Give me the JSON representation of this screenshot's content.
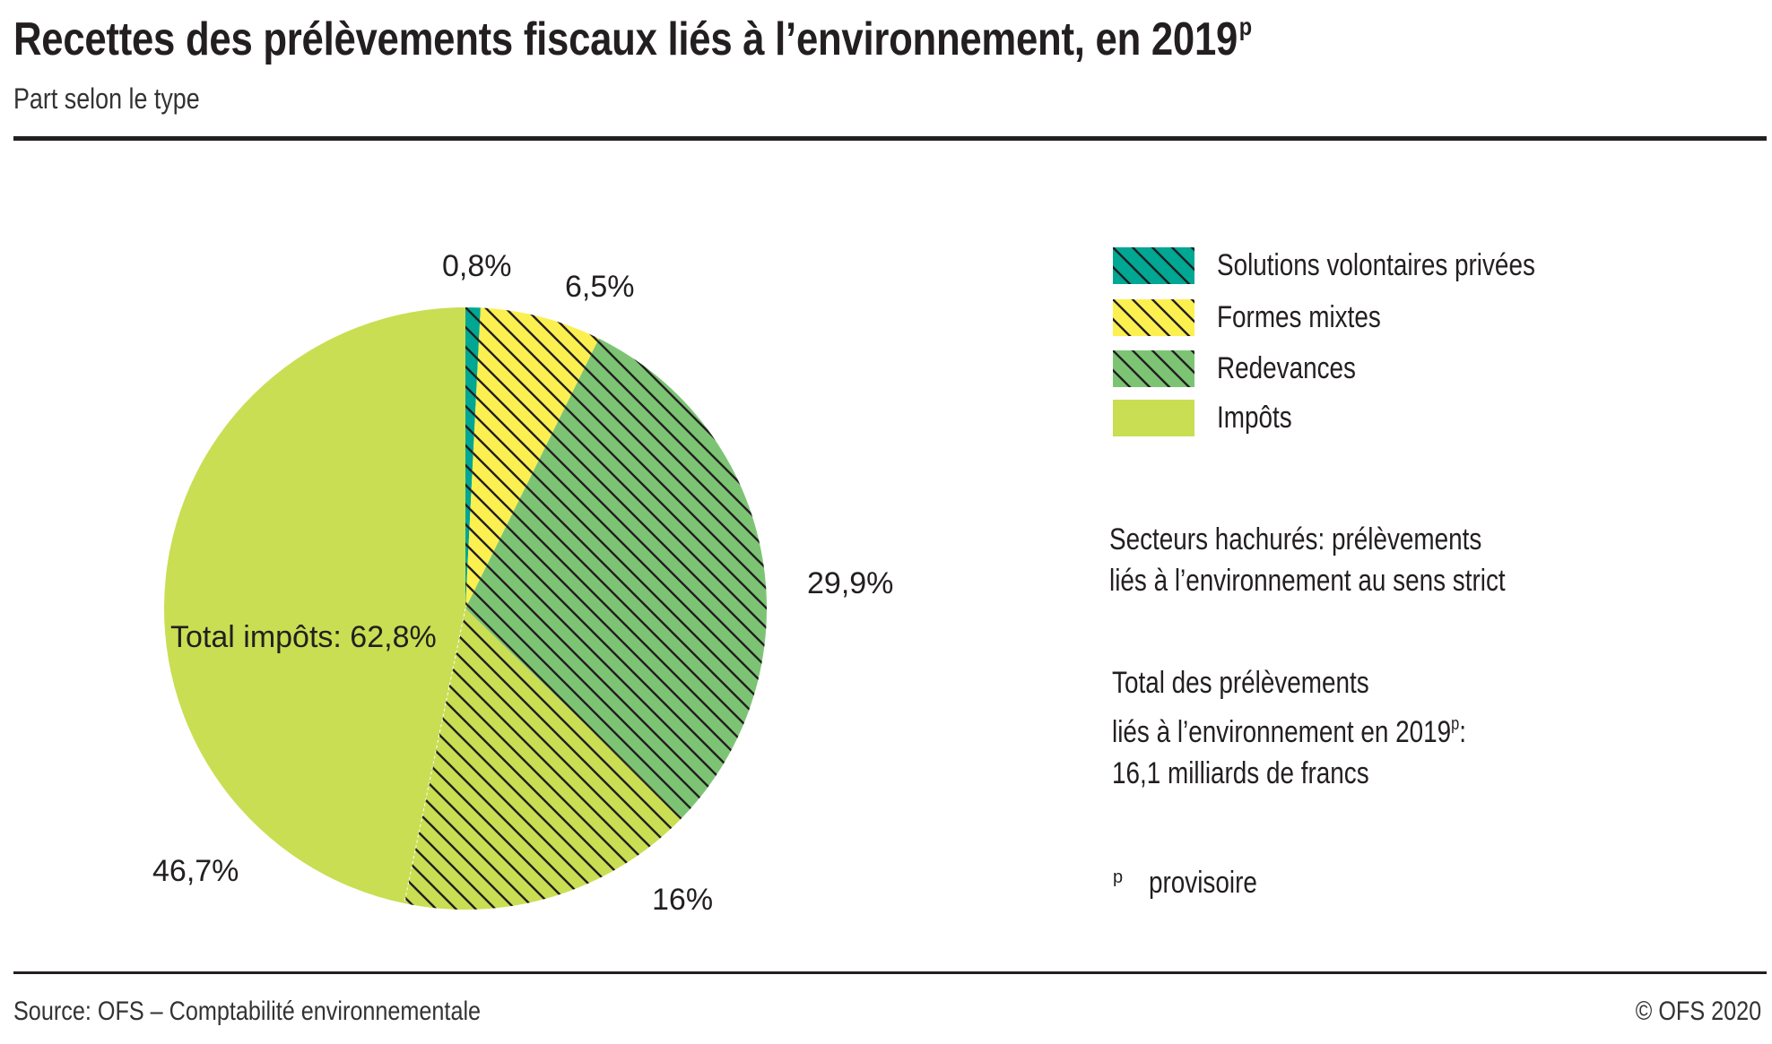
{
  "header": {
    "title": "Recettes des prélèvements fiscaux liés à l’environnement, en 2019",
    "title_superscript": "p",
    "subtitle": "Part selon le type"
  },
  "chart_data": {
    "type": "pie",
    "title": "Recettes des prélèvements fiscaux liés à l’environnement, en 2019p",
    "subtitle": "Part selon le type",
    "unit": "%",
    "start": "top",
    "direction": "clockwise",
    "slices": [
      {
        "name": "Solutions volontaires privées",
        "value": 0.8,
        "label": "0,8%",
        "color": "#00A793",
        "hatched": true
      },
      {
        "name": "Formes mixtes",
        "value": 6.5,
        "label": "6,5%",
        "color": "#FCF050",
        "hatched": true
      },
      {
        "name": "Redevances",
        "value": 29.9,
        "label": "29,9%",
        "color": "#7CC474",
        "hatched": true
      },
      {
        "name": "Impôts (au sens strict)",
        "value": 16.0,
        "label": "16%",
        "color": "#C9DE52",
        "hatched": true
      },
      {
        "name": "Impôts",
        "value": 46.7,
        "label": "46,7%",
        "color": "#C9DE52",
        "hatched": false
      }
    ],
    "annotations": [
      {
        "text": "Total impôts: 62,8%"
      }
    ],
    "legend": {
      "placement": "right",
      "entries": [
        {
          "label": "Solutions volontaires privées",
          "color": "#00A793",
          "hatched": true
        },
        {
          "label": "Formes mixtes",
          "color": "#FCF050",
          "hatched": true
        },
        {
          "label": "Redevances",
          "color": "#7CC474",
          "hatched": true
        },
        {
          "label": "Impôts",
          "color": "#C9DE52",
          "hatched": false
        }
      ]
    }
  },
  "notes": {
    "hatch_line1": "Secteurs hachurés: prélèvements",
    "hatch_line2": "liés à l’environnement au sens strict",
    "total_line1": "Total des prélèvements",
    "total_line2": "liés à l’environnement en 2019",
    "total_line2_sup": "p",
    "total_line2_end": ":",
    "total_line3": "16,1 milliards de francs",
    "footnote_mark": "p",
    "footnote_text": "provisoire"
  },
  "footer": {
    "source": "Source: OFS – Comptabilité environnementale",
    "copyright": "© OFS 2020"
  },
  "colors": {
    "text": "#231F20",
    "hatch": "#231F20"
  }
}
